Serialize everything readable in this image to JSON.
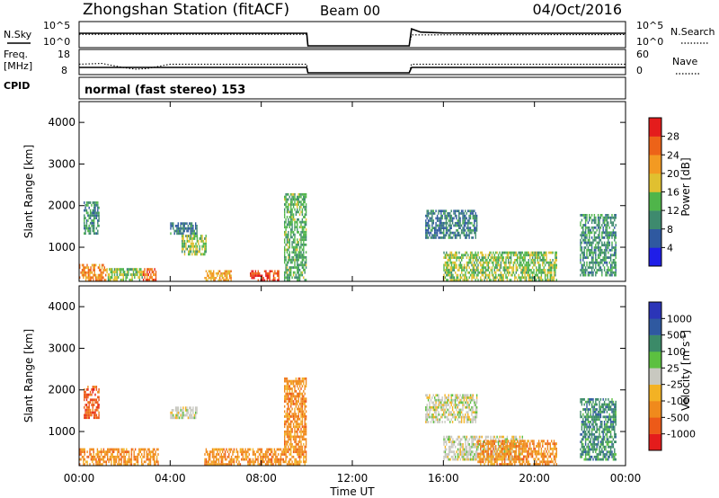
{
  "header": {
    "title": "Zhongshan Station (fitACF)",
    "beam": "Beam 00",
    "date": "04/Oct/2016"
  },
  "noise_panel": {
    "left_label": "N.Sky",
    "right_label": "N.Search",
    "left_ticks": [
      "10^5",
      "10^0"
    ],
    "right_ticks": [
      "10^5",
      "10^0"
    ]
  },
  "freq_panel": {
    "left_label_1": "Freq.",
    "left_label_2": "[MHz]",
    "left_ticks": [
      "18",
      "8"
    ],
    "right_label": "Nave",
    "right_ticks": [
      "60",
      "0"
    ]
  },
  "cpid": {
    "label": "CPID",
    "value": "normal (fast stereo) 153"
  },
  "x_axis": {
    "label": "Time UT",
    "ticks": [
      "00:00",
      "04:00",
      "08:00",
      "12:00",
      "16:00",
      "20:00",
      "00:00"
    ]
  },
  "colors": {
    "power": [
      "#1f1ee8",
      "#2f59a0",
      "#3e8a6e",
      "#4fb54a",
      "#e0c030",
      "#f39a22",
      "#ed6318",
      "#e41c1c"
    ],
    "velocity": [
      "#e41c1c",
      "#ed5a18",
      "#f08a1c",
      "#f3b224",
      "#c8c8c0",
      "#5cc040",
      "#3b8a68",
      "#2f59a0",
      "#2b35b8"
    ]
  },
  "chart_data": [
    {
      "type": "line",
      "title": "N.Sky / N.Search",
      "x_unit": "hours UT",
      "xlim": [
        0,
        24
      ],
      "y_scale": "log",
      "series": [
        {
          "name": "N.Sky",
          "x": [
            0,
            2,
            4,
            6,
            8,
            10,
            10.05,
            14.5,
            14.6,
            15,
            16,
            18,
            20,
            22,
            24
          ],
          "y": [
            1500,
            1500,
            1500,
            1500,
            1500,
            1500,
            1,
            1,
            20000,
            3000,
            1800,
            1600,
            1500,
            1500,
            1500
          ]
        },
        {
          "name": "N.Search",
          "x": [
            0,
            10,
            10.05,
            14.5,
            14.6,
            24
          ],
          "y": [
            800,
            800,
            1,
            1,
            600,
            700
          ]
        }
      ]
    },
    {
      "type": "line",
      "title": "Freq. / Nave",
      "x_unit": "hours UT",
      "xlim": [
        0,
        24
      ],
      "ylim": [
        8,
        18
      ],
      "y2lim": [
        0,
        60
      ],
      "series": [
        {
          "name": "Freq. [MHz]",
          "x": [
            0,
            10,
            10.05,
            14.5,
            14.6,
            24
          ],
          "y": [
            10.5,
            10.5,
            8,
            8,
            10.5,
            10.5
          ]
        },
        {
          "name": "Nave",
          "x": [
            0,
            1,
            2,
            2.5,
            3,
            4,
            4.5,
            10,
            10.05,
            14.5,
            14.6,
            24
          ],
          "y": [
            24,
            26,
            14,
            10,
            12,
            24,
            24,
            24,
            0,
            0,
            24,
            24
          ]
        }
      ]
    },
    {
      "type": "heatmap",
      "title": "Power [dB]",
      "x_unit": "hours UT",
      "xlim": [
        0,
        24
      ],
      "ylabel": "Slant Range [km]",
      "ylim": [
        180,
        4500
      ],
      "yticks": [
        1000,
        2000,
        3000,
        4000
      ],
      "colorbar": {
        "label": "Power [dB]",
        "ticks": [
          "4",
          "8",
          "12",
          "16",
          "20",
          "24",
          "28"
        ],
        "range": [
          0,
          30
        ]
      },
      "regions": [
        {
          "t0": 0.0,
          "t1": 1.2,
          "r0": 180,
          "r1": 600,
          "value": 22
        },
        {
          "t0": 0.2,
          "t1": 0.9,
          "r0": 1300,
          "r1": 2100,
          "value": 10
        },
        {
          "t0": 1.2,
          "t1": 2.8,
          "r0": 180,
          "r1": 500,
          "value": 14
        },
        {
          "t0": 2.8,
          "t1": 3.4,
          "r0": 180,
          "r1": 500,
          "value": 24
        },
        {
          "t0": 4.0,
          "t1": 5.2,
          "r0": 1300,
          "r1": 1600,
          "value": 8
        },
        {
          "t0": 4.5,
          "t1": 5.6,
          "r0": 800,
          "r1": 1300,
          "value": 14
        },
        {
          "t0": 5.5,
          "t1": 6.7,
          "r0": 180,
          "r1": 450,
          "value": 20
        },
        {
          "t0": 7.5,
          "t1": 8.8,
          "r0": 180,
          "r1": 450,
          "value": 26
        },
        {
          "t0": 9.0,
          "t1": 10.0,
          "r0": 180,
          "r1": 2300,
          "value": 12
        },
        {
          "t0": 15.2,
          "t1": 17.5,
          "r0": 1200,
          "r1": 1900,
          "value": 8
        },
        {
          "t0": 16.0,
          "t1": 21.0,
          "r0": 180,
          "r1": 900,
          "value": 14
        },
        {
          "t0": 22.0,
          "t1": 23.6,
          "r0": 300,
          "r1": 1800,
          "value": 10
        }
      ]
    },
    {
      "type": "heatmap",
      "title": "Velocity [m s^-1]",
      "x_unit": "hours UT",
      "xlim": [
        0,
        24
      ],
      "xlabel": "Time UT",
      "ylabel": "Slant Range [km]",
      "ylim": [
        180,
        4500
      ],
      "yticks": [
        1000,
        2000,
        3000,
        4000
      ],
      "colorbar": {
        "label": "Velocity [m s^-1]",
        "ticks": [
          "-1000",
          "-500",
          "-100",
          "-25",
          "25",
          "100",
          "500",
          "1000"
        ]
      },
      "regions": [
        {
          "t0": 0.0,
          "t1": 3.5,
          "r0": 180,
          "r1": 600,
          "value": -100
        },
        {
          "t0": 0.2,
          "t1": 0.9,
          "r0": 1300,
          "r1": 2100,
          "value": -500
        },
        {
          "t0": 4.0,
          "t1": 5.2,
          "r0": 1300,
          "r1": 1600,
          "value": 0
        },
        {
          "t0": 5.5,
          "t1": 10.0,
          "r0": 180,
          "r1": 600,
          "value": -100
        },
        {
          "t0": 9.0,
          "t1": 10.0,
          "r0": 600,
          "r1": 2300,
          "value": -100
        },
        {
          "t0": 15.2,
          "t1": 17.5,
          "r0": 1200,
          "r1": 1900,
          "value": 0
        },
        {
          "t0": 16.0,
          "t1": 19.5,
          "r0": 300,
          "r1": 900,
          "value": 0
        },
        {
          "t0": 17.5,
          "t1": 21.0,
          "r0": 180,
          "r1": 800,
          "value": -100
        },
        {
          "t0": 22.0,
          "t1": 23.6,
          "r0": 300,
          "r1": 1800,
          "value": 100
        }
      ]
    }
  ]
}
